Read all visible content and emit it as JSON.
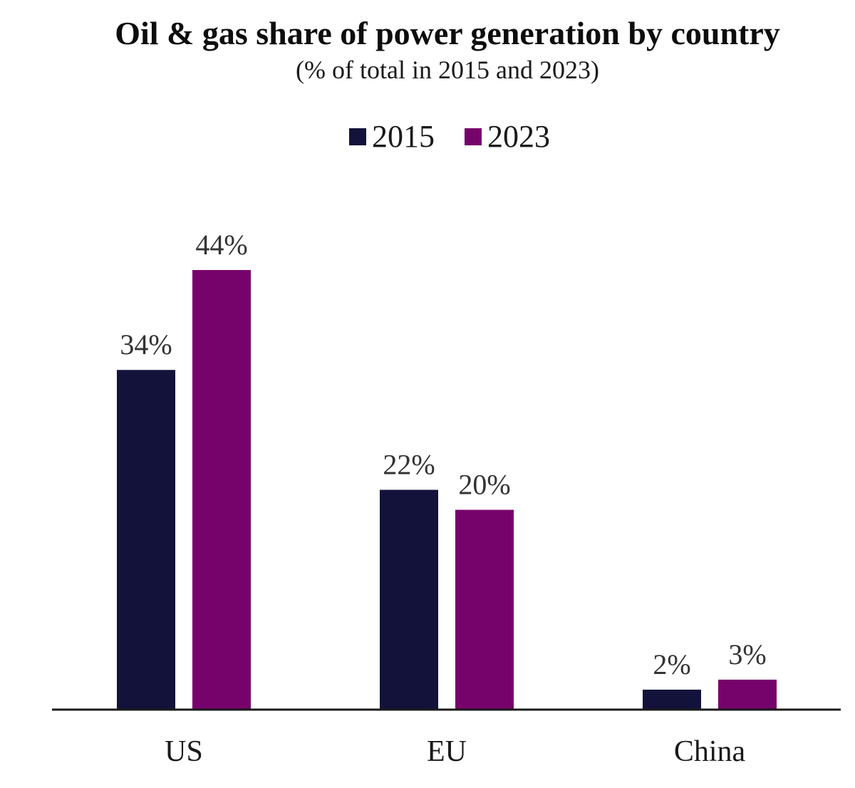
{
  "chart_data": {
    "type": "bar",
    "title": "Oil & gas share of power generation by country",
    "subtitle": "(% of total in 2015 and 2023)",
    "categories": [
      "US",
      "EU",
      "China"
    ],
    "series": [
      {
        "name": "2015",
        "color": "#13123a",
        "values": [
          34,
          22,
          2
        ],
        "labels": [
          "34%",
          "22%",
          "2%"
        ]
      },
      {
        "name": "2023",
        "color": "#76036b",
        "values": [
          44,
          20,
          3
        ],
        "labels": [
          "44%",
          "20%",
          "3%"
        ]
      }
    ],
    "xlabel": "",
    "ylabel": "",
    "ylim": [
      0,
      50
    ],
    "grid": false,
    "legend_position": "top-center",
    "axis_color": "#1a1a1a"
  }
}
